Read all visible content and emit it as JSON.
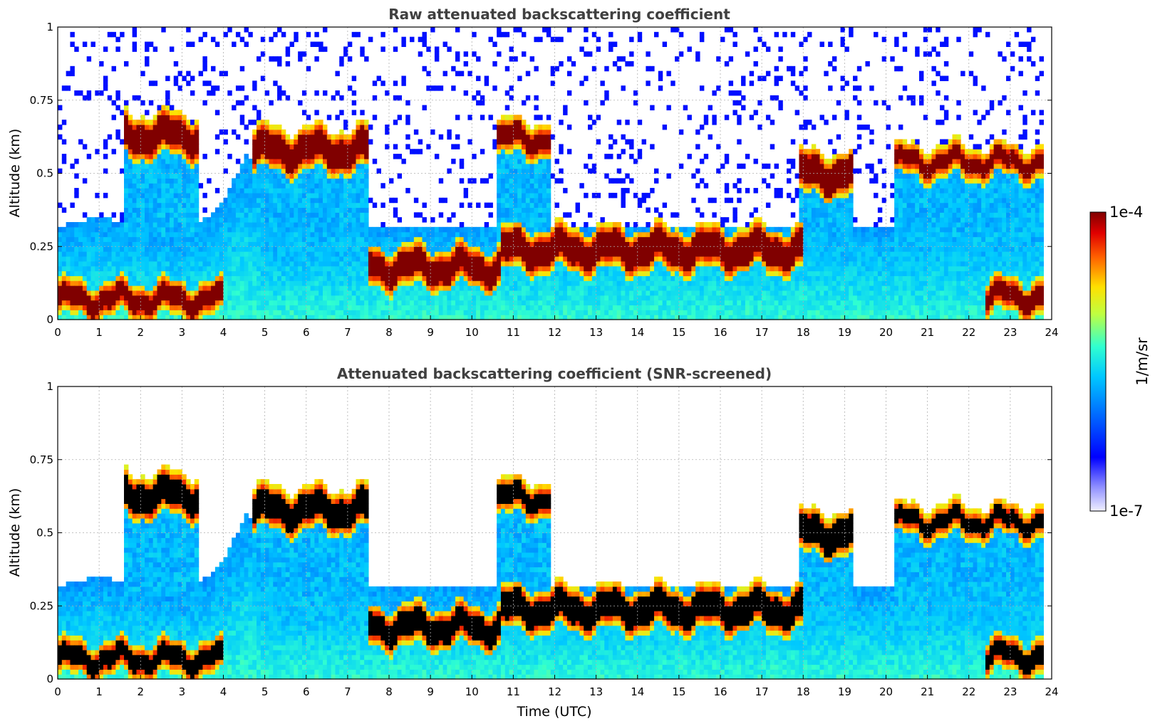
{
  "chart_data": [
    {
      "type": "heatmap",
      "title": "Raw attenuated backscattering coefficient",
      "xlabel": "",
      "ylabel": "Altitude (km)",
      "xlim": [
        0,
        24
      ],
      "ylim": [
        0,
        1
      ],
      "x_ticks": [
        "0",
        "1",
        "2",
        "3",
        "4",
        "5",
        "6",
        "7",
        "8",
        "9",
        "10",
        "11",
        "12",
        "13",
        "14",
        "15",
        "16",
        "17",
        "18",
        "19",
        "20",
        "21",
        "22",
        "23",
        "24"
      ],
      "y_ticks": [
        "0",
        "0.25",
        "0.5",
        "0.75",
        "1"
      ],
      "grid": true,
      "colormap": "jet",
      "screened": false,
      "layers": {
        "surface_layer_top_km": [
          [
            0,
            0.12
          ],
          [
            1,
            0.15
          ],
          [
            2,
            0.12
          ],
          [
            3,
            0.08
          ],
          [
            4,
            0.2
          ],
          [
            4.6,
            0.38
          ],
          [
            5,
            0.12
          ],
          [
            6,
            0.12
          ],
          [
            7,
            0.12
          ],
          [
            8,
            0.12
          ],
          [
            9,
            0.12
          ],
          [
            10,
            0.12
          ],
          [
            11,
            0.12
          ],
          [
            12,
            0.12
          ],
          [
            13,
            0.12
          ],
          [
            14,
            0.12
          ],
          [
            15,
            0.12
          ],
          [
            16,
            0.12
          ],
          [
            17,
            0.12
          ],
          [
            18,
            0.12
          ],
          [
            19,
            0.12
          ],
          [
            20,
            0.12
          ],
          [
            21,
            0.12
          ],
          [
            22,
            0.12
          ],
          [
            23,
            0.12
          ],
          [
            23.8,
            0.12
          ]
        ],
        "cloud_layer_km": [
          {
            "x0": 1.6,
            "x1": 3.4,
            "alt": 0.63,
            "thick": 0.09
          },
          {
            "x0": 4.7,
            "x1": 7.5,
            "alt": 0.58,
            "thick": 0.09
          },
          {
            "x0": 7.5,
            "x1": 10.7,
            "alt": 0.18,
            "thick": 0.08
          },
          {
            "x0": 10.6,
            "x1": 11.9,
            "alt": 0.62,
            "thick": 0.06
          },
          {
            "x0": 10.7,
            "x1": 18.0,
            "alt": 0.24,
            "thick": 0.09
          },
          {
            "x0": 17.9,
            "x1": 19.2,
            "alt": 0.5,
            "thick": 0.09
          },
          {
            "x0": 20.2,
            "x1": 23.8,
            "alt": 0.54,
            "thick": 0.05
          },
          {
            "x0": 0,
            "x1": 4.0,
            "alt": 0.07,
            "thick": 0.06
          },
          {
            "x0": 22.4,
            "x1": 23.8,
            "alt": 0.08,
            "thick": 0.06
          }
        ]
      }
    },
    {
      "type": "heatmap",
      "title": "Attenuated backscattering coefficient (SNR-screened)",
      "xlabel": "Time (UTC)",
      "ylabel": "Altitude (km)",
      "xlim": [
        0,
        24
      ],
      "ylim": [
        0,
        1
      ],
      "x_ticks": [
        "0",
        "1",
        "2",
        "3",
        "4",
        "5",
        "6",
        "7",
        "8",
        "9",
        "10",
        "11",
        "12",
        "13",
        "14",
        "15",
        "16",
        "17",
        "18",
        "19",
        "20",
        "21",
        "22",
        "23",
        "24"
      ],
      "y_ticks": [
        "0",
        "0.25",
        "0.5",
        "0.75",
        "1"
      ],
      "grid": true,
      "colormap": "jet",
      "screened": true
    }
  ],
  "colorbar": {
    "label": "1/m/sr",
    "max_label": "1e-4",
    "min_label": "1e-7",
    "scale": "log",
    "range": [
      1e-07,
      0.0001
    ]
  }
}
